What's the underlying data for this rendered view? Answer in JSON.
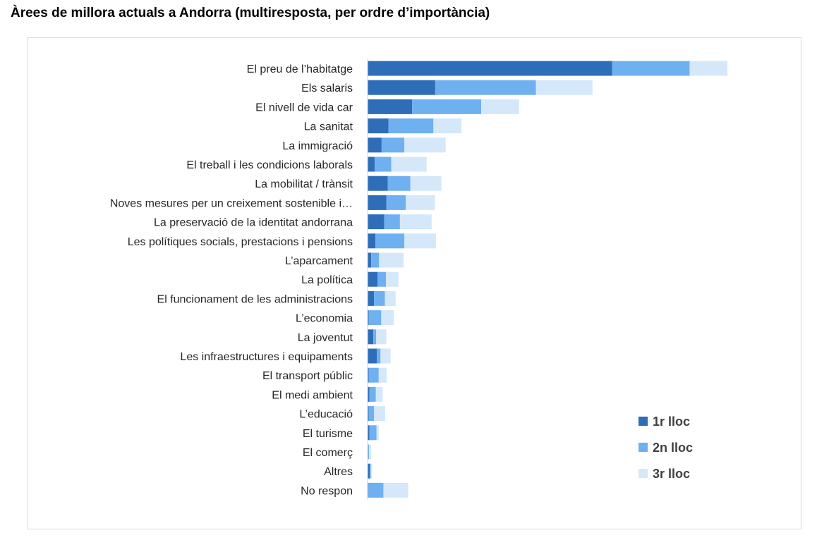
{
  "page": {
    "title": "Àrees de millora actuals a Andorra (multiresposta, per ordre d’importància)"
  },
  "chart_data": {
    "type": "bar",
    "orientation": "horizontal",
    "stacked": true,
    "title": "",
    "xlabel": "",
    "ylabel": "",
    "xlim": [
      0,
      100
    ],
    "grid": false,
    "legend_position": "bottom-right",
    "categories": [
      "El preu de l’habitatge",
      "Els salaris",
      "El nivell de vida car",
      "La sanitat",
      "La immigració",
      "El treball i les condicions laborals",
      "La mobilitat / trànsit",
      "Noves mesures per un creixement sostenible i…",
      "La preservació de la identitat andorrana",
      "Les polítiques socials, prestacions i pensions",
      "L’aparcament",
      "La política",
      "El funcionament de les administracions",
      "L’economia",
      "La joventut",
      "Les infraestructures i equipaments",
      "El transport públic",
      "El medi ambient",
      "L’educació",
      "El turisme",
      "El comerç",
      "Altres",
      "No respon"
    ],
    "series": [
      {
        "name": "1r lloc",
        "color": "#2e6db8",
        "values": [
          68.0,
          18.8,
          12.4,
          5.8,
          3.9,
          2.0,
          5.6,
          5.2,
          4.6,
          2.2,
          1.0,
          2.8,
          1.8,
          0.3,
          1.6,
          2.6,
          0.3,
          0.5,
          0.3,
          0.5,
          0.1,
          0.6,
          0.2
        ]
      },
      {
        "name": "2n lloc",
        "color": "#6fb0f0",
        "values": [
          21.5,
          28.0,
          19.2,
          12.5,
          6.3,
          4.6,
          6.3,
          5.4,
          4.4,
          8.0,
          2.2,
          2.3,
          3.0,
          3.5,
          0.8,
          1.0,
          2.8,
          1.8,
          1.5,
          2.0,
          0.3,
          0.3,
          4.2
        ]
      },
      {
        "name": "3r lloc",
        "color": "#d4e8fa",
        "values": [
          10.5,
          15.7,
          10.5,
          7.8,
          11.5,
          9.8,
          8.6,
          8.1,
          8.8,
          8.8,
          6.8,
          3.5,
          3.0,
          3.5,
          2.8,
          2.8,
          2.2,
          1.9,
          3.1,
          0.6,
          0.6,
          0.3,
          6.9
        ]
      }
    ]
  }
}
